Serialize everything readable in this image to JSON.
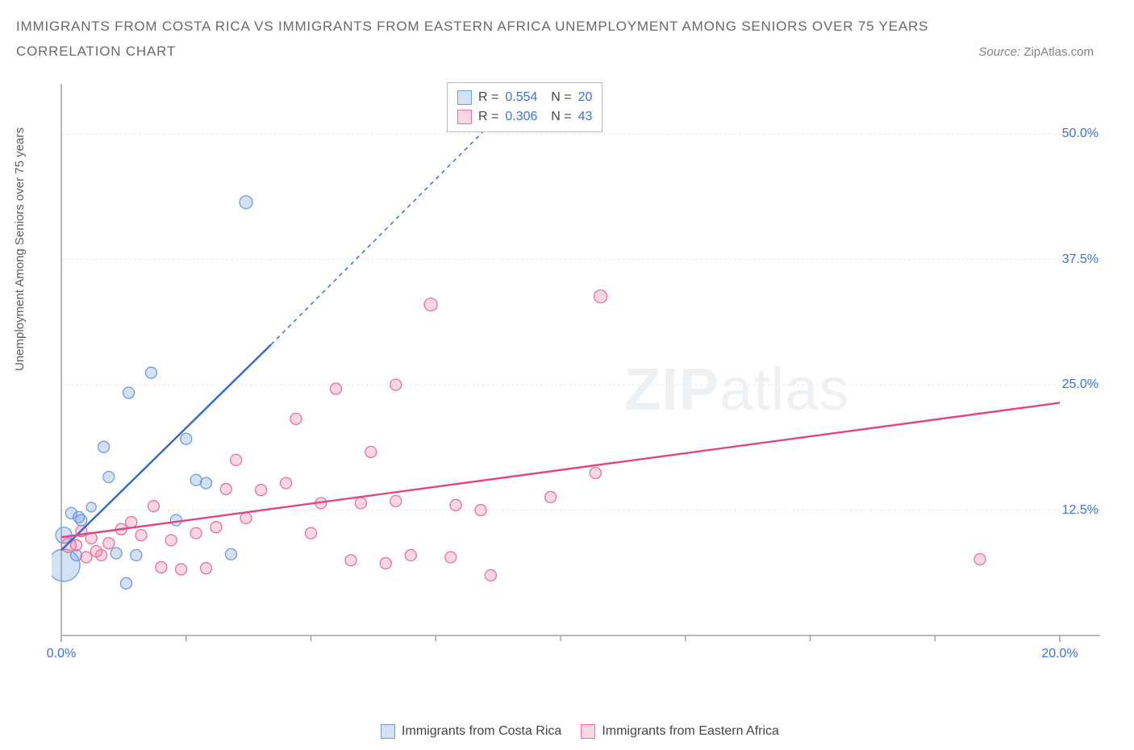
{
  "header": {
    "title_line1": "IMMIGRANTS FROM COSTA RICA VS IMMIGRANTS FROM EASTERN AFRICA UNEMPLOYMENT AMONG SENIORS OVER 75 YEARS",
    "title_line2": "CORRELATION CHART",
    "source_prefix": "Source: ",
    "source_name": "ZipAtlas.com"
  },
  "axes": {
    "ylabel": "Unemployment Among Seniors over 75 years",
    "x_min": 0,
    "x_max": 20,
    "y_min": 0,
    "y_max": 55,
    "x_ticks": [
      0,
      20
    ],
    "x_tick_labels": [
      "0.0%",
      "20.0%"
    ],
    "x_minor": [
      2.5,
      5,
      7.5,
      10,
      12.5,
      15,
      17.5
    ],
    "y_ticks": [
      12.5,
      25.0,
      37.5,
      50.0
    ],
    "y_tick_labels": [
      "12.5%",
      "25.0%",
      "37.5%",
      "50.0%"
    ],
    "axis_color": "#9fa3a7",
    "grid_color": "#e6e8ea",
    "tick_label_color": "#3d72d1",
    "plot_left_pad": 12,
    "plot_right_pad": 60,
    "plot_top_pad": 4,
    "plot_bottom_pad": 52
  },
  "watermark": {
    "bold": "ZIP",
    "rest": "atlas"
  },
  "series": [
    {
      "id": "costa_rica",
      "label": "Immigrants from Costa Rica",
      "color_fill": "rgba(109,155,222,0.30)",
      "color_stroke": "#6d9bde",
      "line_color": "#2e6ad1",
      "legend_R": "0.554",
      "legend_N": "20",
      "trend": {
        "x1": 0,
        "y1": 8.5,
        "x2": 4.2,
        "y2": 29,
        "dash_to_x": 8.8,
        "dash_to_y": 52
      },
      "points": [
        {
          "x": 0.05,
          "y": 7.0,
          "r": 20
        },
        {
          "x": 0.05,
          "y": 10.0,
          "r": 10
        },
        {
          "x": 0.2,
          "y": 12.2,
          "r": 7
        },
        {
          "x": 0.3,
          "y": 8.0,
          "r": 7
        },
        {
          "x": 0.35,
          "y": 11.8,
          "r": 7
        },
        {
          "x": 0.4,
          "y": 11.5,
          "r": 7
        },
        {
          "x": 0.6,
          "y": 12.8,
          "r": 6
        },
        {
          "x": 0.85,
          "y": 18.8,
          "r": 7
        },
        {
          "x": 0.95,
          "y": 15.8,
          "r": 7
        },
        {
          "x": 1.1,
          "y": 8.2,
          "r": 7
        },
        {
          "x": 1.3,
          "y": 5.2,
          "r": 7
        },
        {
          "x": 1.35,
          "y": 24.2,
          "r": 7
        },
        {
          "x": 1.5,
          "y": 8.0,
          "r": 7
        },
        {
          "x": 1.8,
          "y": 26.2,
          "r": 7
        },
        {
          "x": 2.3,
          "y": 11.5,
          "r": 7
        },
        {
          "x": 2.5,
          "y": 19.6,
          "r": 7
        },
        {
          "x": 2.7,
          "y": 15.5,
          "r": 7
        },
        {
          "x": 2.9,
          "y": 15.2,
          "r": 7
        },
        {
          "x": 3.4,
          "y": 8.1,
          "r": 7
        },
        {
          "x": 3.7,
          "y": 43.2,
          "r": 8
        }
      ]
    },
    {
      "id": "eastern_africa",
      "label": "Immigrants from Eastern Africa",
      "color_fill": "rgba(233,113,155,0.28)",
      "color_stroke": "#e9719b",
      "line_color": "#e24585",
      "legend_R": "0.306",
      "legend_N": "43",
      "trend": {
        "x1": 0,
        "y1": 9.8,
        "x2": 20,
        "y2": 23.2
      },
      "points": [
        {
          "x": 0.15,
          "y": 9.0,
          "r": 9
        },
        {
          "x": 0.3,
          "y": 9.0,
          "r": 7
        },
        {
          "x": 0.4,
          "y": 10.4,
          "r": 7
        },
        {
          "x": 0.5,
          "y": 7.8,
          "r": 7
        },
        {
          "x": 0.6,
          "y": 9.7,
          "r": 7
        },
        {
          "x": 0.7,
          "y": 8.4,
          "r": 7
        },
        {
          "x": 0.8,
          "y": 8.0,
          "r": 7
        },
        {
          "x": 0.95,
          "y": 9.2,
          "r": 7
        },
        {
          "x": 1.2,
          "y": 10.6,
          "r": 7
        },
        {
          "x": 1.4,
          "y": 11.3,
          "r": 7
        },
        {
          "x": 1.6,
          "y": 10.0,
          "r": 7
        },
        {
          "x": 1.85,
          "y": 12.9,
          "r": 7
        },
        {
          "x": 2.0,
          "y": 6.8,
          "r": 7
        },
        {
          "x": 2.2,
          "y": 9.5,
          "r": 7
        },
        {
          "x": 2.4,
          "y": 6.6,
          "r": 7
        },
        {
          "x": 2.7,
          "y": 10.2,
          "r": 7
        },
        {
          "x": 2.9,
          "y": 6.7,
          "r": 7
        },
        {
          "x": 3.1,
          "y": 10.8,
          "r": 7
        },
        {
          "x": 3.3,
          "y": 14.6,
          "r": 7
        },
        {
          "x": 3.5,
          "y": 17.5,
          "r": 7
        },
        {
          "x": 3.7,
          "y": 11.7,
          "r": 7
        },
        {
          "x": 4.0,
          "y": 14.5,
          "r": 7
        },
        {
          "x": 4.5,
          "y": 15.2,
          "r": 7
        },
        {
          "x": 4.7,
          "y": 21.6,
          "r": 7
        },
        {
          "x": 5.0,
          "y": 10.2,
          "r": 7
        },
        {
          "x": 5.2,
          "y": 13.2,
          "r": 7
        },
        {
          "x": 5.5,
          "y": 24.6,
          "r": 7
        },
        {
          "x": 5.8,
          "y": 7.5,
          "r": 7
        },
        {
          "x": 6.0,
          "y": 13.2,
          "r": 7
        },
        {
          "x": 6.2,
          "y": 18.3,
          "r": 7
        },
        {
          "x": 6.5,
          "y": 7.2,
          "r": 7
        },
        {
          "x": 6.7,
          "y": 13.4,
          "r": 7
        },
        {
          "x": 6.7,
          "y": 25.0,
          "r": 7
        },
        {
          "x": 7.0,
          "y": 8.0,
          "r": 7
        },
        {
          "x": 7.4,
          "y": 33.0,
          "r": 8
        },
        {
          "x": 7.8,
          "y": 7.8,
          "r": 7
        },
        {
          "x": 7.9,
          "y": 13.0,
          "r": 7
        },
        {
          "x": 8.4,
          "y": 12.5,
          "r": 7
        },
        {
          "x": 8.6,
          "y": 6.0,
          "r": 7
        },
        {
          "x": 9.8,
          "y": 13.8,
          "r": 7
        },
        {
          "x": 10.7,
          "y": 16.2,
          "r": 7
        },
        {
          "x": 10.8,
          "y": 33.8,
          "r": 8
        },
        {
          "x": 18.4,
          "y": 7.6,
          "r": 7
        }
      ]
    }
  ]
}
